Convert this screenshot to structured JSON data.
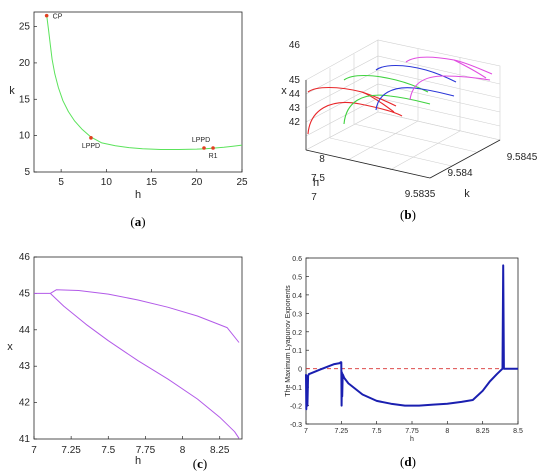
{
  "panel_labels": {
    "a": {
      "open": "(",
      "letter": "a",
      "close": ")"
    },
    "b": {
      "open": "(",
      "letter": "b",
      "close": ")"
    },
    "c": {
      "open": "(",
      "letter": "c",
      "close": ")"
    },
    "d": {
      "open": "(",
      "letter": "d",
      "close": ")"
    }
  },
  "chart_data": [
    {
      "id": "a",
      "type": "line",
      "xlabel": "h",
      "ylabel": "k",
      "xlim": [
        2,
        25
      ],
      "ylim": [
        5,
        27
      ],
      "xticks": [
        5,
        10,
        15,
        20,
        25
      ],
      "yticks": [
        5,
        10,
        15,
        20,
        25
      ],
      "series": [
        {
          "color": "#5be35b",
          "x": [
            3.4,
            3.6,
            3.8,
            4.0,
            4.3,
            4.7,
            5.2,
            5.8,
            6.5,
            7.3,
            8.3,
            9.5,
            11,
            12.5,
            14,
            16,
            18,
            20,
            21,
            22,
            23,
            24,
            25
          ],
          "y": [
            26.5,
            24.6,
            22.5,
            20.5,
            18.5,
            16.6,
            14.8,
            13.3,
            12.0,
            10.9,
            9.8,
            9.0,
            8.6,
            8.35,
            8.2,
            8.1,
            8.1,
            8.15,
            8.2,
            8.3,
            8.4,
            8.55,
            8.7
          ]
        }
      ],
      "points": [
        {
          "label": "CP",
          "x": 3.4,
          "y": 26.5
        },
        {
          "label": "LPPD",
          "x": 8.3,
          "y": 9.7
        },
        {
          "label": "LPPD",
          "x": 20.8,
          "y": 8.3
        },
        {
          "label": "R1",
          "x": 21.8,
          "y": 8.3
        }
      ]
    },
    {
      "id": "b",
      "type": "line",
      "xlabel": "k",
      "ylabel": "h",
      "zlabel": "x",
      "xticks": [
        "9.5835",
        "9.584",
        "9.5845"
      ],
      "yticks": [
        "7",
        "7.5",
        "8"
      ],
      "zticks": [
        "42",
        "43",
        "44",
        "45",
        "46"
      ],
      "series_colors": [
        "#e8272a",
        "#3fd23f",
        "#2a36d8",
        "#e04de0"
      ]
    },
    {
      "id": "c",
      "type": "line",
      "xlabel": "h",
      "ylabel": "x",
      "xlim": [
        7,
        8.4
      ],
      "ylim": [
        41,
        46
      ],
      "xticks": [
        "7",
        "7.25",
        "7.5",
        "7.75",
        "8",
        "8.25"
      ],
      "yticks": [
        41,
        42,
        43,
        44,
        45,
        46
      ],
      "series": [
        {
          "color": "#b25ae8",
          "x": [
            7.0,
            7.08,
            7.11
          ],
          "y": [
            45.0,
            45.0,
            45.0
          ]
        },
        {
          "color": "#b25ae8",
          "x": [
            7.11,
            7.15,
            7.3,
            7.5,
            7.7,
            7.9,
            8.1,
            8.3,
            8.38
          ],
          "y": [
            45.0,
            45.1,
            45.08,
            44.98,
            44.82,
            44.62,
            44.38,
            44.06,
            43.65
          ]
        },
        {
          "color": "#b25ae8",
          "x": [
            7.11,
            7.2,
            7.35,
            7.5,
            7.7,
            7.9,
            8.1,
            8.25,
            8.35,
            8.38
          ],
          "y": [
            45.0,
            44.65,
            44.15,
            43.7,
            43.15,
            42.65,
            42.1,
            41.6,
            41.2,
            41.02
          ]
        }
      ]
    },
    {
      "id": "d",
      "type": "line",
      "xlabel": "h",
      "ylabel": "The Maximum Lyapunov Exponents",
      "xlim": [
        7,
        8.5
      ],
      "ylim": [
        -0.3,
        0.6
      ],
      "xticks": [
        "7",
        "7.25",
        "7.5",
        "7.75",
        "8",
        "8.25",
        "8.5"
      ],
      "yticks": [
        "-0.3",
        "-0.2",
        "-0.1",
        "0",
        "0.1",
        "0.2",
        "0.3",
        "0.4",
        "0.5",
        "0.6"
      ],
      "series": [
        {
          "color": "#1a1fb0",
          "x": [
            7.0,
            7.002,
            7.006,
            7.01,
            7.015,
            7.02,
            7.05,
            7.1,
            7.15,
            7.2,
            7.24,
            7.245,
            7.25,
            7.252,
            7.254,
            7.256,
            7.26,
            7.27,
            7.3,
            7.4,
            7.5,
            7.6,
            7.7,
            7.8,
            7.9,
            8.0,
            8.1,
            8.18,
            8.25,
            8.3,
            8.35,
            8.39,
            8.395,
            8.4,
            8.405,
            8.41,
            8.5
          ],
          "y": [
            -0.03,
            -0.22,
            -0.04,
            -0.2,
            -0.04,
            -0.03,
            -0.02,
            -0.005,
            0.01,
            0.025,
            0.03,
            0.035,
            0.035,
            -0.2,
            -0.02,
            -0.15,
            -0.03,
            -0.05,
            -0.08,
            -0.14,
            -0.175,
            -0.19,
            -0.2,
            -0.2,
            -0.195,
            -0.19,
            -0.18,
            -0.17,
            -0.12,
            -0.07,
            -0.03,
            0.0,
            0.56,
            0.0,
            0.0,
            0.0,
            0.0
          ]
        },
        {
          "color": "#d83030",
          "dashed": true,
          "x": [
            7.0,
            8.5
          ],
          "y": [
            0.0,
            0.0
          ]
        }
      ]
    }
  ]
}
